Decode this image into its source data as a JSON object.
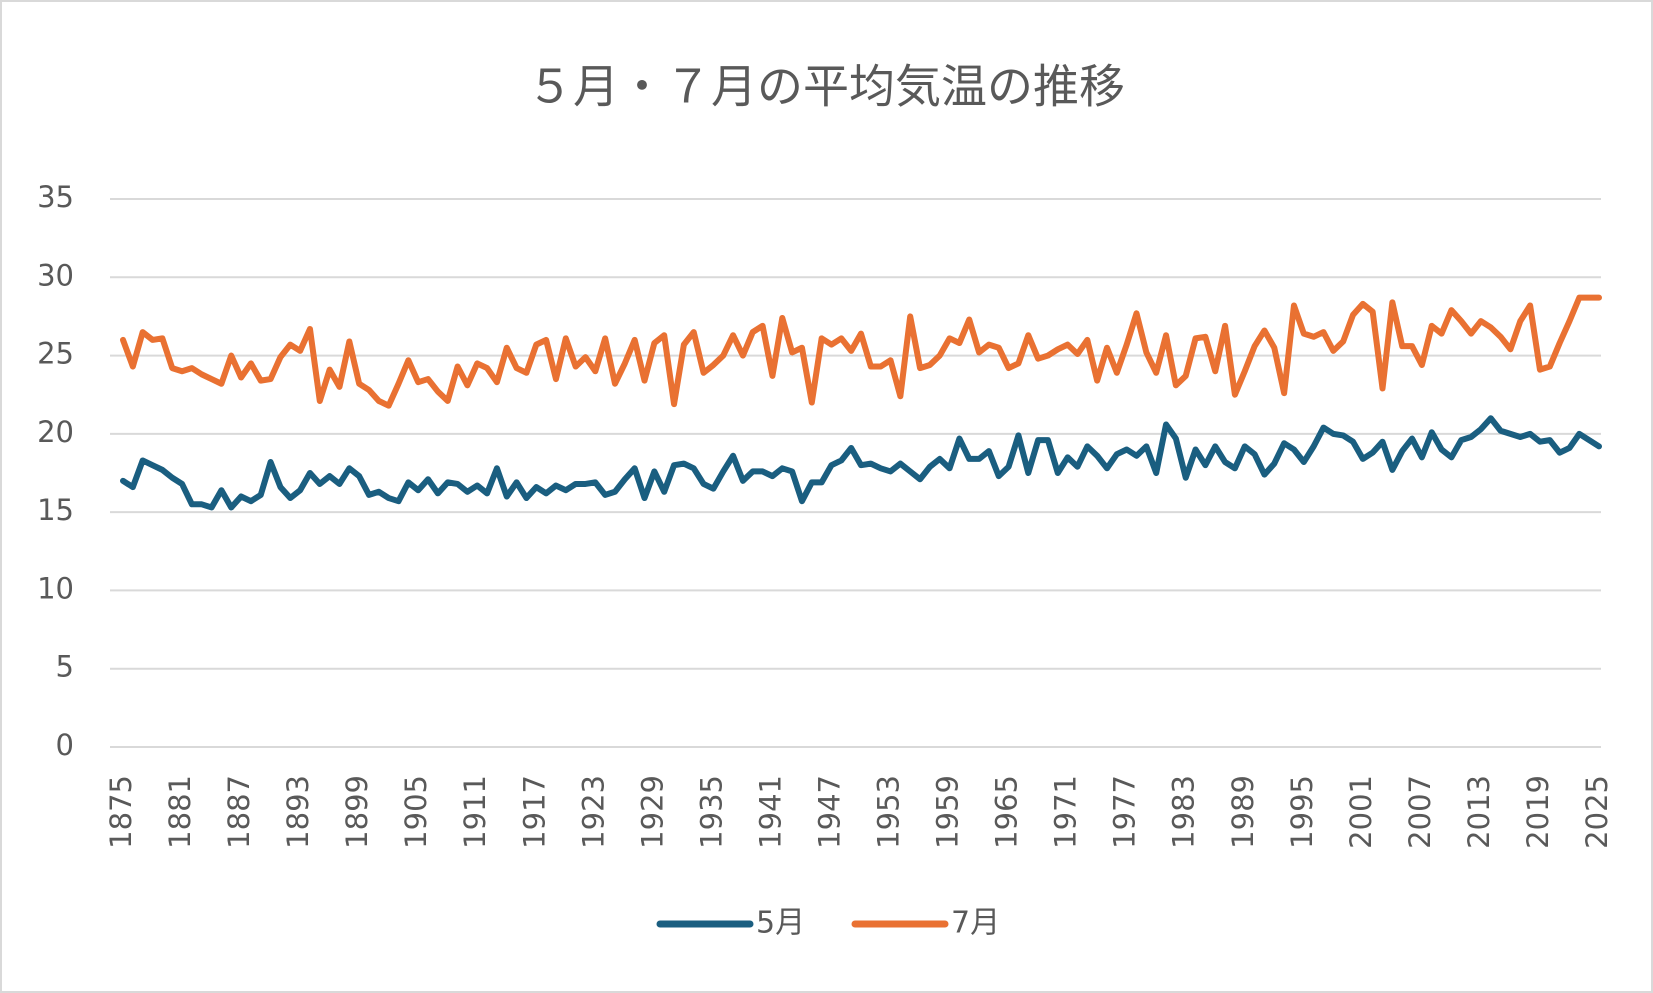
{
  "chart_data": {
    "type": "line",
    "title": "５月・７月の平均気温の推移",
    "categories": [
      "1875",
      null,
      null,
      null,
      null,
      null,
      "1881",
      null,
      null,
      null,
      null,
      null,
      "1887",
      null,
      null,
      null,
      null,
      null,
      "1893",
      null,
      null,
      null,
      null,
      null,
      "1899",
      null,
      null,
      null,
      null,
      null,
      "1905",
      null,
      null,
      null,
      null,
      null,
      "1911",
      null,
      null,
      null,
      null,
      null,
      "1917",
      null,
      null,
      null,
      null,
      null,
      "1923",
      null,
      null,
      null,
      null,
      null,
      "1929",
      null,
      null,
      null,
      null,
      null,
      "1935",
      null,
      null,
      null,
      null,
      null,
      "1941",
      null,
      null,
      null,
      null,
      null,
      "1947",
      null,
      null,
      null,
      null,
      null,
      "1953",
      null,
      null,
      null,
      null,
      null,
      "1959",
      null,
      null,
      null,
      null,
      null,
      "1965",
      null,
      null,
      null,
      null,
      null,
      "1971",
      null,
      null,
      null,
      null,
      null,
      "1977",
      null,
      null,
      null,
      null,
      null,
      "1983",
      null,
      null,
      null,
      null,
      null,
      "1989",
      null,
      null,
      null,
      null,
      null,
      "1995",
      null,
      null,
      null,
      null,
      null,
      "2001",
      null,
      null,
      null,
      null,
      null,
      "2007",
      null,
      null,
      null,
      null,
      null,
      "2013",
      null,
      null,
      null,
      null,
      null,
      "2019",
      null,
      null,
      null,
      null,
      null,
      "2025"
    ],
    "series": [
      {
        "name": "5月",
        "color": "#1a5e80",
        "values": [
          17.0,
          16.6,
          18.3,
          18.0,
          17.7,
          17.2,
          16.8,
          15.5,
          15.5,
          15.3,
          16.4,
          15.3,
          16.0,
          15.7,
          16.1,
          18.2,
          16.6,
          15.9,
          16.4,
          17.5,
          16.8,
          17.3,
          16.8,
          17.8,
          17.3,
          16.1,
          16.3,
          15.9,
          15.7,
          16.9,
          16.4,
          17.1,
          16.2,
          16.9,
          16.8,
          16.3,
          16.7,
          16.2,
          17.8,
          16.0,
          16.9,
          15.9,
          16.6,
          16.2,
          16.7,
          16.4,
          16.8,
          16.8,
          16.9,
          16.1,
          16.3,
          17.1,
          17.8,
          15.9,
          17.6,
          16.3,
          18.0,
          18.1,
          17.8,
          16.8,
          16.5,
          17.6,
          18.6,
          17.0,
          17.6,
          17.6,
          17.3,
          17.8,
          17.6,
          15.7,
          16.9,
          16.9,
          18.0,
          18.3,
          19.1,
          18.0,
          18.1,
          17.8,
          17.6,
          18.1,
          17.6,
          17.1,
          17.9,
          18.4,
          17.8,
          19.7,
          18.4,
          18.4,
          18.9,
          17.3,
          17.9,
          19.9,
          17.5,
          19.6,
          19.6,
          17.5,
          18.5,
          17.9,
          19.2,
          18.6,
          17.8,
          18.7,
          19.0,
          18.6,
          19.2,
          17.5,
          20.6,
          19.7,
          17.2,
          19.0,
          18.0,
          19.2,
          18.2,
          17.8,
          19.2,
          18.7,
          17.4,
          18.1,
          19.4,
          19.0,
          18.2,
          19.2,
          20.4,
          20.0,
          19.9,
          19.5,
          18.4,
          18.8,
          19.5,
          17.7,
          18.9,
          19.7,
          18.5,
          20.1,
          19.0,
          18.5,
          19.6,
          19.8,
          20.3,
          21.0,
          20.2,
          20.0,
          19.8,
          20.0,
          19.5,
          19.6,
          18.8,
          19.1,
          20.0,
          19.6,
          19.2
        ]
      },
      {
        "name": "7月",
        "color": "#e97132",
        "values": [
          26.0,
          24.3,
          26.5,
          26.0,
          26.1,
          24.2,
          24.0,
          24.2,
          23.8,
          23.5,
          23.2,
          25.0,
          23.6,
          24.5,
          23.4,
          23.5,
          24.9,
          25.7,
          25.3,
          26.7,
          22.1,
          24.1,
          23.0,
          25.9,
          23.2,
          22.8,
          22.1,
          21.8,
          23.2,
          24.7,
          23.3,
          23.5,
          22.7,
          22.1,
          24.3,
          23.1,
          24.5,
          24.2,
          23.3,
          25.5,
          24.2,
          23.9,
          25.7,
          26.0,
          23.5,
          26.1,
          24.3,
          24.9,
          24.0,
          26.1,
          23.2,
          24.5,
          26.0,
          23.4,
          25.8,
          26.3,
          21.9,
          25.7,
          26.5,
          23.9,
          24.4,
          25.0,
          26.3,
          25.0,
          26.5,
          26.9,
          23.7,
          27.4,
          25.2,
          25.5,
          22.0,
          26.1,
          25.7,
          26.1,
          25.3,
          26.4,
          24.3,
          24.3,
          24.7,
          22.4,
          27.5,
          24.2,
          24.4,
          25.0,
          26.1,
          25.8,
          27.3,
          25.2,
          25.7,
          25.5,
          24.2,
          24.5,
          26.3,
          24.8,
          25.0,
          25.4,
          25.7,
          25.1,
          26.0,
          23.4,
          25.5,
          23.9,
          25.7,
          27.7,
          25.2,
          23.9,
          26.3,
          23.1,
          23.7,
          26.1,
          26.2,
          24.0,
          26.9,
          22.5,
          24.0,
          25.6,
          26.6,
          25.5,
          22.6,
          28.2,
          26.4,
          26.2,
          26.5,
          25.3,
          25.9,
          27.6,
          28.3,
          27.8,
          22.9,
          28.4,
          25.6,
          25.6,
          24.4,
          26.9,
          26.4,
          27.9,
          27.2,
          26.4,
          27.2,
          26.8,
          26.2,
          25.4,
          27.2,
          28.2,
          24.1,
          24.3,
          25.8,
          27.2,
          28.7,
          28.7,
          28.7
        ]
      }
    ],
    "ylim": [
      0,
      35
    ],
    "yticks": [
      0,
      5,
      10,
      15,
      20,
      25,
      30,
      35
    ],
    "grid": true,
    "legend": "bottom"
  }
}
